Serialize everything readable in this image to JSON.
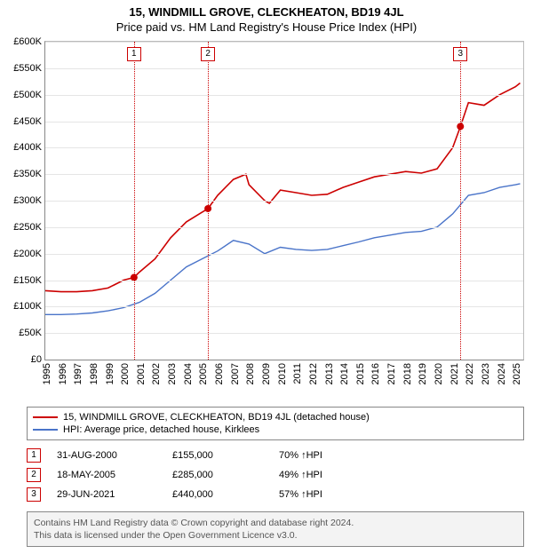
{
  "titles": {
    "main": "15, WINDMILL GROVE, CLECKHEATON, BD19 4JL",
    "sub": "Price paid vs. HM Land Registry's House Price Index (HPI)"
  },
  "chart": {
    "type": "line",
    "background_color": "#ffffff",
    "grid_color": "#e5e5e5",
    "axis_color": "#888888",
    "label_fontsize": 11,
    "title_fontsize": 13,
    "ylim": [
      0,
      600000
    ],
    "yticks": [
      0,
      50000,
      100000,
      150000,
      200000,
      250000,
      300000,
      350000,
      400000,
      450000,
      500000,
      550000,
      600000
    ],
    "ytick_labels": [
      "£0",
      "£50K",
      "£100K",
      "£150K",
      "£200K",
      "£250K",
      "£300K",
      "£350K",
      "£400K",
      "£450K",
      "£500K",
      "£550K",
      "£600K"
    ],
    "xlim": [
      1995,
      2025.5
    ],
    "xticks": [
      1995,
      1996,
      1997,
      1998,
      1999,
      2000,
      2001,
      2002,
      2003,
      2004,
      2005,
      2006,
      2007,
      2008,
      2009,
      2010,
      2011,
      2012,
      2013,
      2014,
      2015,
      2016,
      2017,
      2018,
      2019,
      2020,
      2021,
      2022,
      2023,
      2024,
      2025
    ],
    "series": [
      {
        "name": "15, WINDMILL GROVE, CLECKHEATON, BD19 4JL (detached house)",
        "color": "#cc0000",
        "line_width": 1.6,
        "x": [
          1995,
          1996,
          1997,
          1998,
          1999,
          2000,
          2000.66,
          2001,
          2002,
          2003,
          2004,
          2005,
          2005.38,
          2006,
          2007,
          2007.8,
          2008,
          2009,
          2009.3,
          2010,
          2011,
          2012,
          2013,
          2014,
          2015,
          2016,
          2017,
          2018,
          2019,
          2020,
          2021,
          2021.49,
          2022,
          2023,
          2024,
          2025,
          2025.3
        ],
        "y": [
          130000,
          128000,
          128000,
          130000,
          135000,
          150000,
          155000,
          165000,
          190000,
          230000,
          260000,
          278000,
          285000,
          310000,
          340000,
          350000,
          330000,
          300000,
          295000,
          320000,
          315000,
          310000,
          312000,
          325000,
          335000,
          345000,
          350000,
          355000,
          352000,
          360000,
          400000,
          440000,
          485000,
          480000,
          500000,
          515000,
          522000
        ]
      },
      {
        "name": "HPI: Average price, detached house, Kirklees",
        "color": "#4a74c9",
        "line_width": 1.4,
        "x": [
          1995,
          1996,
          1997,
          1998,
          1999,
          2000,
          2001,
          2002,
          2003,
          2004,
          2005,
          2006,
          2007,
          2008,
          2009,
          2010,
          2011,
          2012,
          2013,
          2014,
          2015,
          2016,
          2017,
          2018,
          2019,
          2020,
          2021,
          2022,
          2023,
          2024,
          2025,
          2025.3
        ],
        "y": [
          85000,
          85000,
          86000,
          88000,
          92000,
          98000,
          108000,
          125000,
          150000,
          175000,
          190000,
          205000,
          225000,
          218000,
          200000,
          212000,
          208000,
          206000,
          208000,
          215000,
          222000,
          230000,
          235000,
          240000,
          242000,
          250000,
          275000,
          310000,
          315000,
          325000,
          330000,
          332000
        ]
      }
    ],
    "event_lines": [
      {
        "index": "1",
        "x": 2000.66,
        "color": "#cc0000",
        "point_y": 155000
      },
      {
        "index": "2",
        "x": 2005.38,
        "color": "#cc0000",
        "point_y": 285000
      },
      {
        "index": "3",
        "x": 2021.49,
        "color": "#cc0000",
        "point_y": 440000
      }
    ]
  },
  "legend": {
    "items": [
      {
        "color": "#cc0000",
        "label": "15, WINDMILL GROVE, CLECKHEATON, BD19 4JL (detached house)"
      },
      {
        "color": "#4a74c9",
        "label": "HPI: Average price, detached house, Kirklees"
      }
    ]
  },
  "sales": [
    {
      "index": "1",
      "date": "31-AUG-2000",
      "price": "£155,000",
      "pct": "70%",
      "suffix": "HPI"
    },
    {
      "index": "2",
      "date": "18-MAY-2005",
      "price": "£285,000",
      "pct": "49%",
      "suffix": "HPI"
    },
    {
      "index": "3",
      "date": "29-JUN-2021",
      "price": "£440,000",
      "pct": "57%",
      "suffix": "HPI"
    }
  ],
  "footer": {
    "line1": "Contains HM Land Registry data © Crown copyright and database right 2024.",
    "line2": "This data is licensed under the Open Government Licence v3.0."
  }
}
